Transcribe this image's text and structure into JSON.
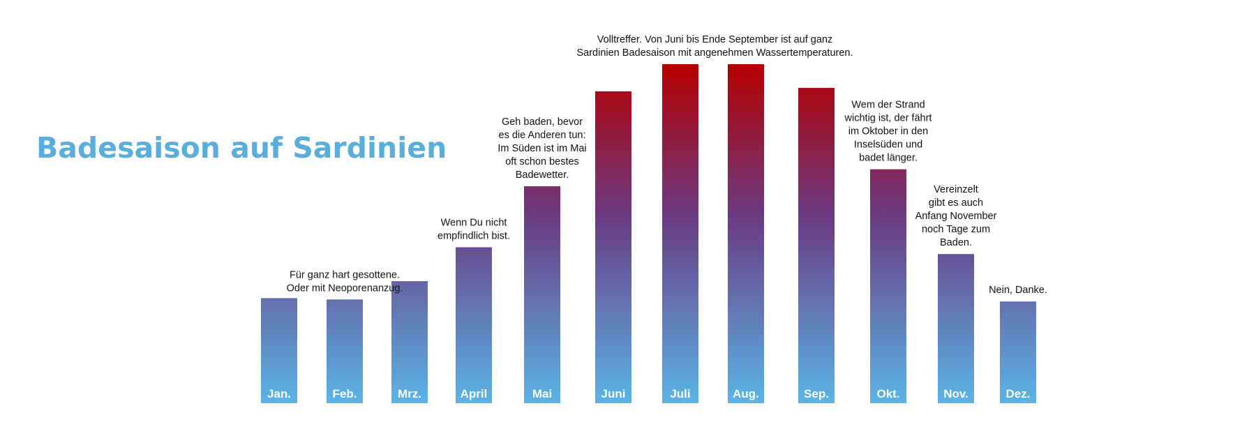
{
  "title": "Badesaison auf Sardinien",
  "chart_data": {
    "type": "bar",
    "title": "Badesaison auf Sardinien",
    "xlabel": "",
    "ylabel": "",
    "grid": false,
    "categories": [
      "Jan.",
      "Feb.",
      "Mrz.",
      "April",
      "Mai",
      "Juni",
      "Juli",
      "Aug.",
      "Sep.",
      "Okt.",
      "Nov.",
      "Dez."
    ],
    "values": [
      1.55,
      1.53,
      1.8,
      2.3,
      3.2,
      4.6,
      5.0,
      5.0,
      4.65,
      3.45,
      2.2,
      1.5
    ],
    "ylim": [
      0,
      5
    ],
    "colors": {
      "low": "#5ab4e6",
      "mid": "#6a3a82",
      "high": "#b50000"
    },
    "annotations": [
      {
        "bar": 1,
        "lines": [
          "Für ganz hart gesottene.",
          "Oder mit Neoporenanzug."
        ]
      },
      {
        "bar": 3,
        "lines": [
          "Wenn Du  nicht",
          "empfindlich bist."
        ]
      },
      {
        "bar": 4,
        "lines": [
          "Geh baden, bevor",
          "es die Anderen tun:",
          "Im Süden ist im Mai",
          "oft schon bestes",
          "Badewetter."
        ]
      },
      {
        "bar": 6,
        "lines": [
          "Volltreffer. Von Juni bis Ende September ist auf ganz",
          "Sardinien Badesaison mit angenehmen Wassertemperaturen."
        ]
      },
      {
        "bar": 9,
        "lines": [
          "Wem der Strand",
          "wichtig ist, der fährt",
          "im Oktober in den",
          "Inselsüden und",
          "badet länger."
        ]
      },
      {
        "bar": 10,
        "lines": [
          "Vereinzelt",
          "gibt es auch",
          "Anfang November",
          "noch Tage zum",
          "Baden."
        ]
      },
      {
        "bar": 11,
        "lines": [
          "Nein, Danke."
        ]
      }
    ]
  }
}
